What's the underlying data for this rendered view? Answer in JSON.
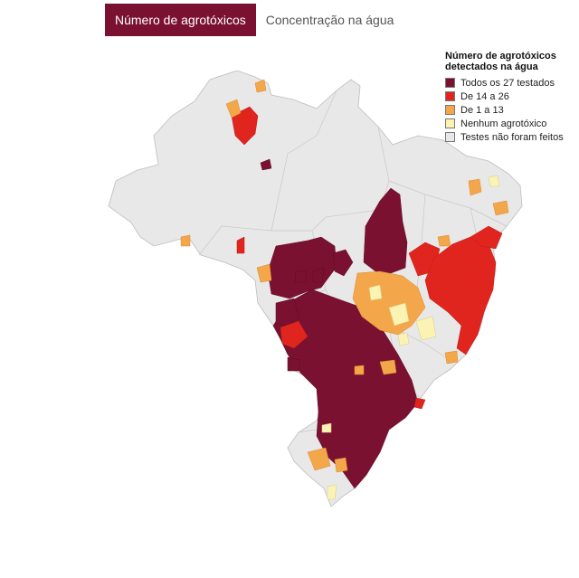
{
  "tabs": [
    {
      "label": "Número de agrotóxicos",
      "active": true
    },
    {
      "label": "Concentração na água",
      "active": false
    }
  ],
  "legend": {
    "title_line1": "Número de agrotóxicos",
    "title_line2": "detectados na água",
    "items": [
      {
        "label": "Todos os 27 testados",
        "color": "#7b1131"
      },
      {
        "label": "De 14 a 26",
        "color": "#e0251f"
      },
      {
        "label": "De 1 a 13",
        "color": "#f4a74a"
      },
      {
        "label": "Nenhum agrotóxico",
        "color": "#fbf3b4"
      },
      {
        "label": "Testes não foram feitos",
        "color": "#e8e8e8"
      }
    ]
  },
  "colors": {
    "no_data": "#e8e8e8",
    "all_27": "#7b1131",
    "from_14_to_26": "#e0251f",
    "from_1_to_13": "#f4a74a",
    "none": "#fbf3b4",
    "border": "#bdbdbd",
    "tab_active_bg": "#7b1131"
  }
}
